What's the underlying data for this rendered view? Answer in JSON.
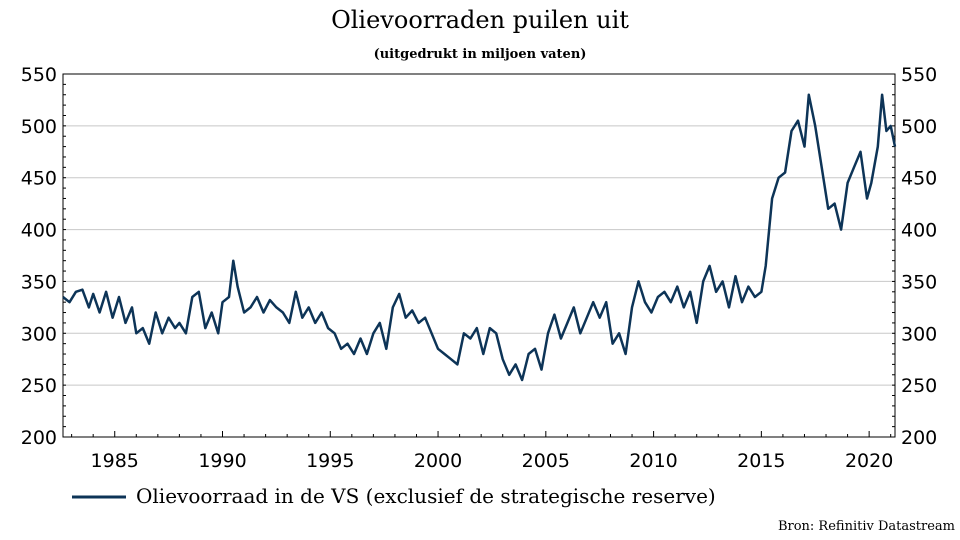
{
  "chart_data": {
    "type": "line",
    "title": "Olievoorraden puilen uit",
    "subtitle": "(uitgedrukt in miljoen vaten)",
    "source": "Bron: Refinitiv Datastream",
    "xlim": [
      1982.6,
      2021.2
    ],
    "ylim": [
      200,
      550
    ],
    "x_ticks": [
      1985,
      1990,
      1995,
      2000,
      2005,
      2010,
      2015,
      2020
    ],
    "x_tick_labels": [
      "1985",
      "1990",
      "1995",
      "2000",
      "2005",
      "2010",
      "2015",
      "2020"
    ],
    "y_ticks": [
      200,
      250,
      300,
      350,
      400,
      450,
      500,
      550
    ],
    "y_tick_labels": [
      "200",
      "250",
      "300",
      "350",
      "400",
      "450",
      "500",
      "550"
    ],
    "grid": true,
    "legend_position": "bottom-left",
    "line_color": "#0d3457",
    "series": [
      {
        "name": "Olievoorraad in de VS (exclusief de strategische reserve)",
        "x": [
          1982.6,
          1982.9,
          1983.2,
          1983.5,
          1983.8,
          1984.0,
          1984.3,
          1984.6,
          1984.9,
          1985.2,
          1985.5,
          1985.8,
          1986.0,
          1986.3,
          1986.6,
          1986.9,
          1987.2,
          1987.5,
          1987.8,
          1988.0,
          1988.3,
          1988.6,
          1988.9,
          1989.2,
          1989.5,
          1989.8,
          1990.0,
          1990.3,
          1990.5,
          1990.7,
          1991.0,
          1991.3,
          1991.6,
          1991.9,
          1992.2,
          1992.5,
          1992.8,
          1993.1,
          1993.4,
          1993.7,
          1994.0,
          1994.3,
          1994.6,
          1994.9,
          1995.2,
          1995.5,
          1995.8,
          1996.1,
          1996.4,
          1996.7,
          1997.0,
          1997.3,
          1997.6,
          1997.9,
          1998.2,
          1998.5,
          1998.8,
          1999.1,
          1999.4,
          1999.7,
          2000.0,
          2000.3,
          2000.6,
          2000.9,
          2001.2,
          2001.5,
          2001.8,
          2002.1,
          2002.4,
          2002.7,
          2003.0,
          2003.3,
          2003.6,
          2003.9,
          2004.2,
          2004.5,
          2004.8,
          2005.1,
          2005.4,
          2005.7,
          2006.0,
          2006.3,
          2006.6,
          2006.9,
          2007.2,
          2007.5,
          2007.8,
          2008.1,
          2008.4,
          2008.7,
          2009.0,
          2009.3,
          2009.6,
          2009.9,
          2010.2,
          2010.5,
          2010.8,
          2011.1,
          2011.4,
          2011.7,
          2012.0,
          2012.3,
          2012.6,
          2012.9,
          2013.2,
          2013.5,
          2013.8,
          2014.1,
          2014.4,
          2014.7,
          2015.0,
          2015.2,
          2015.5,
          2015.8,
          2016.1,
          2016.4,
          2016.7,
          2017.0,
          2017.2,
          2017.5,
          2017.8,
          2018.1,
          2018.4,
          2018.7,
          2019.0,
          2019.3,
          2019.6,
          2019.9,
          2020.1,
          2020.4,
          2020.6,
          2020.8,
          2021.0,
          2021.2
        ],
        "y": [
          335,
          330,
          340,
          342,
          325,
          338,
          320,
          340,
          315,
          335,
          310,
          325,
          300,
          305,
          290,
          320,
          300,
          315,
          305,
          310,
          300,
          335,
          340,
          305,
          320,
          300,
          330,
          335,
          370,
          345,
          320,
          325,
          335,
          320,
          332,
          325,
          320,
          310,
          340,
          315,
          325,
          310,
          320,
          305,
          300,
          285,
          290,
          280,
          295,
          280,
          300,
          310,
          285,
          325,
          338,
          315,
          322,
          310,
          315,
          300,
          285,
          280,
          275,
          270,
          300,
          295,
          305,
          280,
          305,
          300,
          275,
          260,
          270,
          255,
          280,
          285,
          265,
          300,
          318,
          295,
          310,
          325,
          300,
          315,
          330,
          315,
          330,
          290,
          300,
          280,
          325,
          350,
          330,
          320,
          335,
          340,
          330,
          345,
          325,
          340,
          310,
          350,
          365,
          340,
          350,
          325,
          355,
          330,
          345,
          335,
          340,
          365,
          430,
          450,
          455,
          495,
          505,
          480,
          530,
          500,
          460,
          420,
          425,
          400,
          445,
          460,
          475,
          430,
          445,
          480,
          530,
          495,
          500,
          480
        ]
      }
    ]
  }
}
